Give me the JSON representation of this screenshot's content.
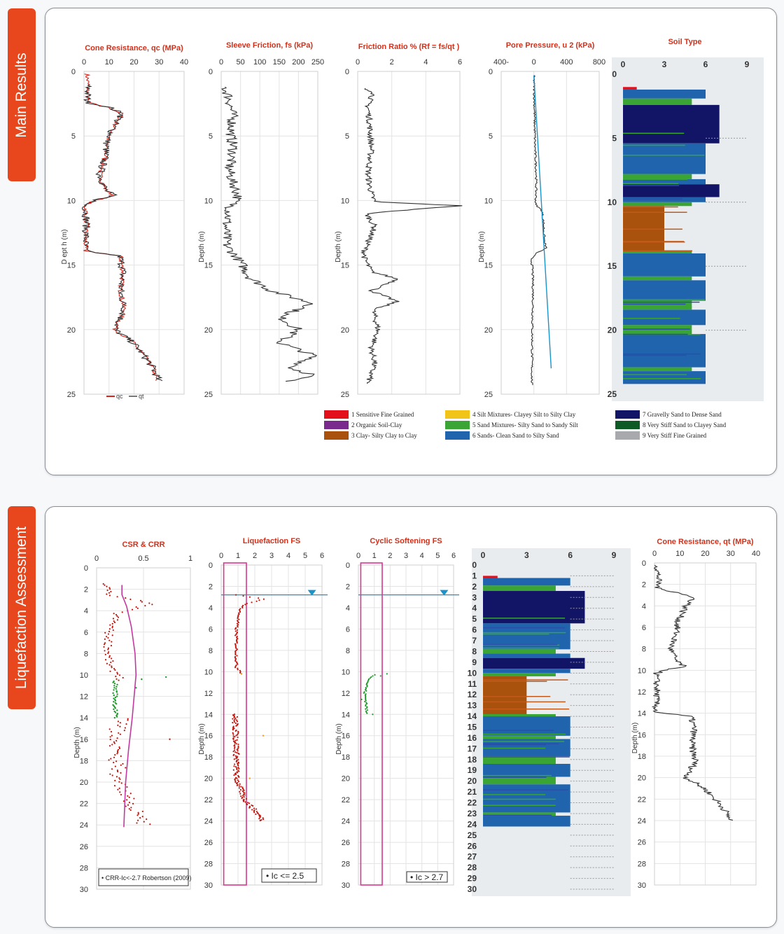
{
  "sections": {
    "main": "Main Results",
    "liq": "Liquefaction Assessment"
  },
  "colors": {
    "accent": "#e8471d",
    "title": "#d1301a",
    "line": "#333333",
    "red_dots": "#c0170f",
    "green_dots": "#1e9a2a",
    "csr_crr_curve": "#c23aa0",
    "fs_box": "#d9368f",
    "water_line": "#1a93c8"
  },
  "soil_legend": [
    {
      "code": 1,
      "label": "1 Sensitive Fine Grained",
      "color": "#e3101c"
    },
    {
      "code": 2,
      "label": "2 Organic Soil-Clay",
      "color": "#7a2a8c"
    },
    {
      "code": 3,
      "label": "3 Clay- Silty Clay to Clay",
      "color": "#a9520d"
    },
    {
      "code": 4,
      "label": "4 Silt Mixtures- Clayey Silt to Silty Clay",
      "color": "#f2c318"
    },
    {
      "code": 5,
      "label": "5 Sand Mixtures- Silty Sand to Sandy Silt",
      "color": "#3aa535"
    },
    {
      "code": 6,
      "label": "6 Sands- Clean Sand to Silty Sand",
      "color": "#1f64ad"
    },
    {
      "code": 7,
      "label": "7 Gravelly Sand to Dense Sand",
      "color": "#121466"
    },
    {
      "code": 8,
      "label": "8 Very Stiff Sand to Clayey Sand",
      "color": "#0d5a25"
    },
    {
      "code": 9,
      "label": "9 Very Stiff Fine Grained",
      "color": "#a7a9ac"
    }
  ],
  "soil_profile": [
    {
      "from": 0,
      "to": 1.0,
      "type": 0
    },
    {
      "from": 1.0,
      "to": 1.2,
      "type": 1
    },
    {
      "from": 1.2,
      "to": 1.9,
      "type": 6
    },
    {
      "from": 1.9,
      "to": 2.4,
      "type": 5
    },
    {
      "from": 2.4,
      "to": 5.4,
      "type": 7
    },
    {
      "from": 5.4,
      "to": 7.8,
      "type": 6
    },
    {
      "from": 7.8,
      "to": 8.2,
      "type": 5
    },
    {
      "from": 8.2,
      "to": 8.6,
      "type": 6
    },
    {
      "from": 8.6,
      "to": 9.6,
      "type": 7
    },
    {
      "from": 9.6,
      "to": 10.0,
      "type": 6
    },
    {
      "from": 10.0,
      "to": 10.3,
      "type": 5
    },
    {
      "from": 10.3,
      "to": 13.8,
      "type": 3
    },
    {
      "from": 13.8,
      "to": 14.0,
      "type": 5
    },
    {
      "from": 14.0,
      "to": 15.8,
      "type": 6
    },
    {
      "from": 15.8,
      "to": 16.1,
      "type": 5
    },
    {
      "from": 16.1,
      "to": 17.7,
      "type": 6
    },
    {
      "from": 17.7,
      "to": 18.4,
      "type": 5
    },
    {
      "from": 18.4,
      "to": 19.6,
      "type": 6
    },
    {
      "from": 19.6,
      "to": 20.3,
      "type": 5
    },
    {
      "from": 20.3,
      "to": 22.9,
      "type": 6
    },
    {
      "from": 22.9,
      "to": 23.2,
      "type": 5
    },
    {
      "from": 23.2,
      "to": 24.2,
      "type": 6
    }
  ],
  "chart_data": [
    {
      "id": "qc",
      "type": "line",
      "title": "Cone Resistance, qc (MPa)",
      "ylabel": "D ept h (m)",
      "xticks": [
        "0",
        "10",
        "20",
        "30",
        "40"
      ],
      "xlim": [
        0,
        40
      ],
      "yticks": [
        "0",
        "5",
        "10",
        "15",
        "20",
        "25"
      ],
      "ylim": [
        0,
        25
      ],
      "legend": [
        "qc",
        "qt"
      ],
      "series": [
        {
          "name": "qc",
          "points": [
            [
              1.2,
              0.2
            ],
            [
              1.6,
              1.2
            ],
            [
              1.3,
              2.4
            ],
            [
              10,
              2.8
            ],
            [
              15.3,
              3.3
            ],
            [
              12.8,
              4.0
            ],
            [
              9.1,
              5.5
            ],
            [
              8.5,
              6.6
            ],
            [
              6.3,
              8.0
            ],
            [
              8.7,
              9.2
            ],
            [
              11.8,
              9.6
            ],
            [
              4.4,
              10.0
            ],
            [
              0.6,
              10.3
            ],
            [
              1.0,
              11.8
            ],
            [
              0.4,
              13.9
            ],
            [
              14.4,
              14.3
            ],
            [
              15.6,
              15.5
            ],
            [
              14.6,
              17.0
            ],
            [
              16.2,
              18.5
            ],
            [
              12.4,
              20.0
            ],
            [
              19.6,
              21.0
            ],
            [
              23.9,
              22.0
            ],
            [
              27.7,
              23.0
            ],
            [
              28.9,
              24.0
            ]
          ]
        },
        {
          "name": "qt",
          "points": [
            [
              1.2,
              1.0
            ],
            [
              1.6,
              1.2
            ],
            [
              1.3,
              2.4
            ],
            [
              10.4,
              2.8
            ],
            [
              15.5,
              3.3
            ],
            [
              12.5,
              4.0
            ],
            [
              9.1,
              5.5
            ],
            [
              8.5,
              6.6
            ],
            [
              6.3,
              8.0
            ],
            [
              8.7,
              9.2
            ],
            [
              11.8,
              9.6
            ],
            [
              4.4,
              10.0
            ],
            [
              0.6,
              10.3
            ],
            [
              1.0,
              11.8
            ],
            [
              0.4,
              13.9
            ],
            [
              14.4,
              14.3
            ],
            [
              15.6,
              15.5
            ],
            [
              14.6,
              17.0
            ],
            [
              16.2,
              18.5
            ],
            [
              12.4,
              20.0
            ],
            [
              19.6,
              21.0
            ],
            [
              23.9,
              22.0
            ],
            [
              27.7,
              23.0
            ],
            [
              30,
              24.0
            ]
          ]
        }
      ]
    },
    {
      "id": "fs",
      "type": "line",
      "title": "Sleeve Friction, fs (kPa)",
      "ylabel": "Depth (m)",
      "xticks": [
        "0",
        "50",
        "100",
        "150",
        "200",
        "250"
      ],
      "xlim": [
        0,
        250
      ],
      "yticks": [
        "0",
        "5",
        "10",
        "15",
        "20",
        "25"
      ],
      "ylim": [
        0,
        25
      ],
      "series": [
        {
          "name": "fs",
          "points": [
            [
              8,
              1.2
            ],
            [
              20,
              2.0
            ],
            [
              30,
              3.5
            ],
            [
              25,
              5.0
            ],
            [
              32,
              6.0
            ],
            [
              20,
              7.5
            ],
            [
              28,
              8.5
            ],
            [
              36,
              9.0
            ],
            [
              44,
              9.7
            ],
            [
              24,
              10.5
            ],
            [
              12,
              12.0
            ],
            [
              14,
              13.5
            ],
            [
              40,
              14.4
            ],
            [
              55,
              15.0
            ],
            [
              75,
              16.0
            ],
            [
              130,
              17.0
            ],
            [
              240,
              18.0
            ],
            [
              150,
              19.0
            ],
            [
              200,
              20.0
            ],
            [
              150,
              21.0
            ],
            [
              240,
              22.0
            ],
            [
              180,
              23.0
            ],
            [
              240,
              23.5
            ],
            [
              170,
              24.0
            ]
          ]
        }
      ]
    },
    {
      "id": "rf",
      "type": "line",
      "title": "Friction Ratio % (Rf = fs/qt )",
      "ylabel": "Depth (m)",
      "xticks": [
        "0",
        "2",
        "4",
        "6"
      ],
      "xlim": [
        0,
        6
      ],
      "yticks": [
        "0",
        "5",
        "10",
        "15",
        "20",
        "25"
      ],
      "ylim": [
        0,
        25
      ],
      "series": [
        {
          "name": "Rf",
          "points": [
            [
              0.3,
              1.3
            ],
            [
              1.0,
              1.6
            ],
            [
              0.6,
              2.5
            ],
            [
              0.7,
              4.0
            ],
            [
              0.8,
              6.0
            ],
            [
              0.6,
              8.0
            ],
            [
              0.8,
              9.5
            ],
            [
              1.0,
              10.1
            ],
            [
              6.0,
              10.4
            ],
            [
              0.5,
              11.0
            ],
            [
              1.0,
              12.0
            ],
            [
              0.4,
              13.9
            ],
            [
              0.4,
              14.5
            ],
            [
              0.8,
              15.5
            ],
            [
              2.4,
              16.1
            ],
            [
              0.8,
              17.0
            ],
            [
              2.3,
              17.8
            ],
            [
              0.9,
              18.5
            ],
            [
              1.2,
              20.0
            ],
            [
              0.8,
              21.5
            ],
            [
              1.0,
              22.5
            ],
            [
              0.6,
              24.2
            ]
          ]
        }
      ]
    },
    {
      "id": "u2",
      "type": "line",
      "title": "Pore Pressure, u 2 (kPa)",
      "ylabel": "Depth (m)",
      "xticks": [
        "400-",
        "0",
        "400",
        "800"
      ],
      "xlim": [
        -400,
        800
      ],
      "yticks": [
        "0",
        "5",
        "10",
        "15",
        "20",
        "25"
      ],
      "ylim": [
        0,
        25
      ],
      "series": [
        {
          "name": "u2",
          "points": [
            [
              0,
              0.3
            ],
            [
              5,
              2.0
            ],
            [
              10,
              4.0
            ],
            [
              15,
              6.0
            ],
            [
              30,
              8.0
            ],
            [
              25,
              9.8
            ],
            [
              20,
              10.3
            ],
            [
              100,
              10.8
            ],
            [
              120,
              11.8
            ],
            [
              130,
              13.2
            ],
            [
              150,
              13.7
            ],
            [
              20,
              14.1
            ],
            [
              -30,
              14.5
            ],
            [
              -15,
              15.5
            ],
            [
              -10,
              17.5
            ],
            [
              -20,
              20.0
            ],
            [
              -25,
              24.3
            ]
          ]
        },
        {
          "name": "hydrostatic",
          "points": [
            [
              0,
              2.6
            ],
            [
              212,
              23.0
            ]
          ]
        }
      ]
    },
    {
      "id": "soiltype",
      "type": "bar",
      "title": "Soil Type",
      "xticks": [
        "0",
        "3",
        "6",
        "9"
      ],
      "xlim": [
        0,
        9
      ],
      "yticks": [
        "0",
        "5",
        "10",
        "15",
        "20",
        "25"
      ],
      "ylim": [
        0,
        25
      ]
    },
    {
      "id": "csr_crr",
      "type": "scatter",
      "title": "CSR & CRR",
      "ylabel": "Depth (m)",
      "xticks": [
        "0",
        "0.5",
        "1"
      ],
      "xlim": [
        0,
        1
      ],
      "yticks": [
        "0",
        "2",
        "4",
        "6",
        "8",
        "10",
        "12",
        "14",
        "16",
        "18",
        "20",
        "22",
        "24",
        "26",
        "28",
        "30"
      ],
      "ylim": [
        0,
        30
      ],
      "legend": "CRR-Ic<-2.7 Robertson (2009)",
      "series": [
        {
          "name": "CRR-Ic<-2.7 Robertson (2009)",
          "points": [
            [
              0.27,
              1.6
            ],
            [
              0.27,
              2.5
            ],
            [
              0.32,
              3.6
            ],
            [
              0.37,
              5.5
            ],
            [
              0.41,
              8.0
            ],
            [
              0.42,
              10.0
            ],
            [
              0.4,
              12.0
            ],
            [
              0.38,
              14.0
            ],
            [
              0.34,
              17.0
            ],
            [
              0.31,
              20.0
            ],
            [
              0.29,
              24.2
            ]
          ]
        }
      ]
    },
    {
      "id": "liq_fs",
      "type": "scatter",
      "title": "Liquefaction FS",
      "ylabel": "Depth (m)",
      "xticks": [
        "0",
        "1",
        "2",
        "3",
        "4",
        "5",
        "6"
      ],
      "xlim": [
        0,
        6
      ],
      "yticks": [
        "0",
        "2",
        "4",
        "6",
        "8",
        "10",
        "12",
        "14",
        "16",
        "18",
        "20",
        "22",
        "24",
        "26",
        "28",
        "30"
      ],
      "ylim": [
        0,
        30
      ],
      "legend": "Ic <= 2.5",
      "water_table": 2.8
    },
    {
      "id": "cyc_fs",
      "type": "scatter",
      "title": "Cyclic Softening FS",
      "ylabel": "Depth (m)",
      "xticks": [
        "0",
        "1",
        "2",
        "3",
        "4",
        "5",
        "6"
      ],
      "xlim": [
        0,
        6
      ],
      "yticks": [
        "0",
        "2",
        "4",
        "6",
        "8",
        "10",
        "12",
        "14",
        "16",
        "18",
        "20",
        "22",
        "24",
        "26",
        "28",
        "30"
      ],
      "ylim": [
        0,
        30
      ],
      "legend": "Ic > 2.7",
      "water_table": 2.8
    },
    {
      "id": "soil_liq",
      "type": "bar",
      "xticks": [
        "0",
        "3",
        "6",
        "9"
      ],
      "xlim": [
        0,
        9
      ],
      "yticks": [
        "0",
        "1",
        "2",
        "3",
        "4",
        "5",
        "6",
        "7",
        "8",
        "9",
        "10",
        "11",
        "12",
        "13",
        "14",
        "15",
        "16",
        "17",
        "18",
        "19",
        "20",
        "21",
        "22",
        "23",
        "24",
        "25",
        "26",
        "27",
        "28",
        "29",
        "30"
      ],
      "ylim": [
        0,
        30
      ]
    },
    {
      "id": "qt2",
      "type": "line",
      "title": "Cone Resistance, qt (MPa)",
      "ylabel": "Depth (m)",
      "xticks": [
        "0",
        "10",
        "20",
        "30",
        "40"
      ],
      "xlim": [
        0,
        40
      ],
      "yticks": [
        "0",
        "2",
        "4",
        "6",
        "8",
        "10",
        "12",
        "14",
        "16",
        "18",
        "20",
        "22",
        "24",
        "26",
        "28",
        "30"
      ],
      "ylim": [
        0,
        30
      ]
    }
  ]
}
